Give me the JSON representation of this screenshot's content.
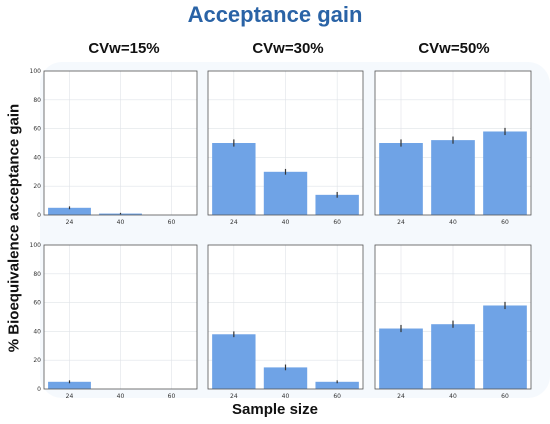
{
  "title": "Acceptance gain",
  "xlabel": "Sample size",
  "ylabel": "% Bioequivalence acceptance gain",
  "column_titles": [
    "CVw=15%",
    "CVw=30%",
    "CVw=50%"
  ],
  "colors": {
    "bar": "#6fa3e6",
    "error": "#333333",
    "grid": "#dfe3e8",
    "background": "#f5f9fd",
    "title": "#2a63a6"
  },
  "chart_data": [
    {
      "type": "bar",
      "row": 1,
      "col": 1,
      "categories": [
        "24",
        "40",
        "60"
      ],
      "values": [
        5,
        1,
        0
      ],
      "errors": [
        1,
        0.5,
        0
      ],
      "ylim": [
        0,
        100
      ],
      "yticks": [
        0,
        20,
        40,
        60,
        80,
        100
      ],
      "grid": true
    },
    {
      "type": "bar",
      "row": 1,
      "col": 2,
      "categories": [
        "24",
        "40",
        "60"
      ],
      "values": [
        50,
        30,
        14
      ],
      "errors": [
        2.5,
        2,
        2
      ],
      "ylim": [
        0,
        100
      ],
      "grid": true
    },
    {
      "type": "bar",
      "row": 1,
      "col": 3,
      "categories": [
        "24",
        "40",
        "60"
      ],
      "values": [
        50,
        52,
        58
      ],
      "errors": [
        2.5,
        2.5,
        2.5
      ],
      "ylim": [
        0,
        100
      ],
      "grid": true
    },
    {
      "type": "bar",
      "row": 2,
      "col": 1,
      "categories": [
        "24",
        "40",
        "60"
      ],
      "values": [
        5,
        0,
        0
      ],
      "errors": [
        1,
        0,
        0
      ],
      "ylim": [
        0,
        100
      ],
      "yticks": [
        0,
        20,
        40,
        60,
        80,
        100
      ],
      "grid": true
    },
    {
      "type": "bar",
      "row": 2,
      "col": 2,
      "categories": [
        "24",
        "40",
        "60"
      ],
      "values": [
        38,
        15,
        5
      ],
      "errors": [
        2,
        2,
        1
      ],
      "ylim": [
        0,
        100
      ],
      "grid": true
    },
    {
      "type": "bar",
      "row": 2,
      "col": 3,
      "categories": [
        "24",
        "40",
        "60"
      ],
      "values": [
        42,
        45,
        58
      ],
      "errors": [
        2.5,
        2.5,
        2.5
      ],
      "ylim": [
        0,
        100
      ],
      "grid": true
    }
  ]
}
